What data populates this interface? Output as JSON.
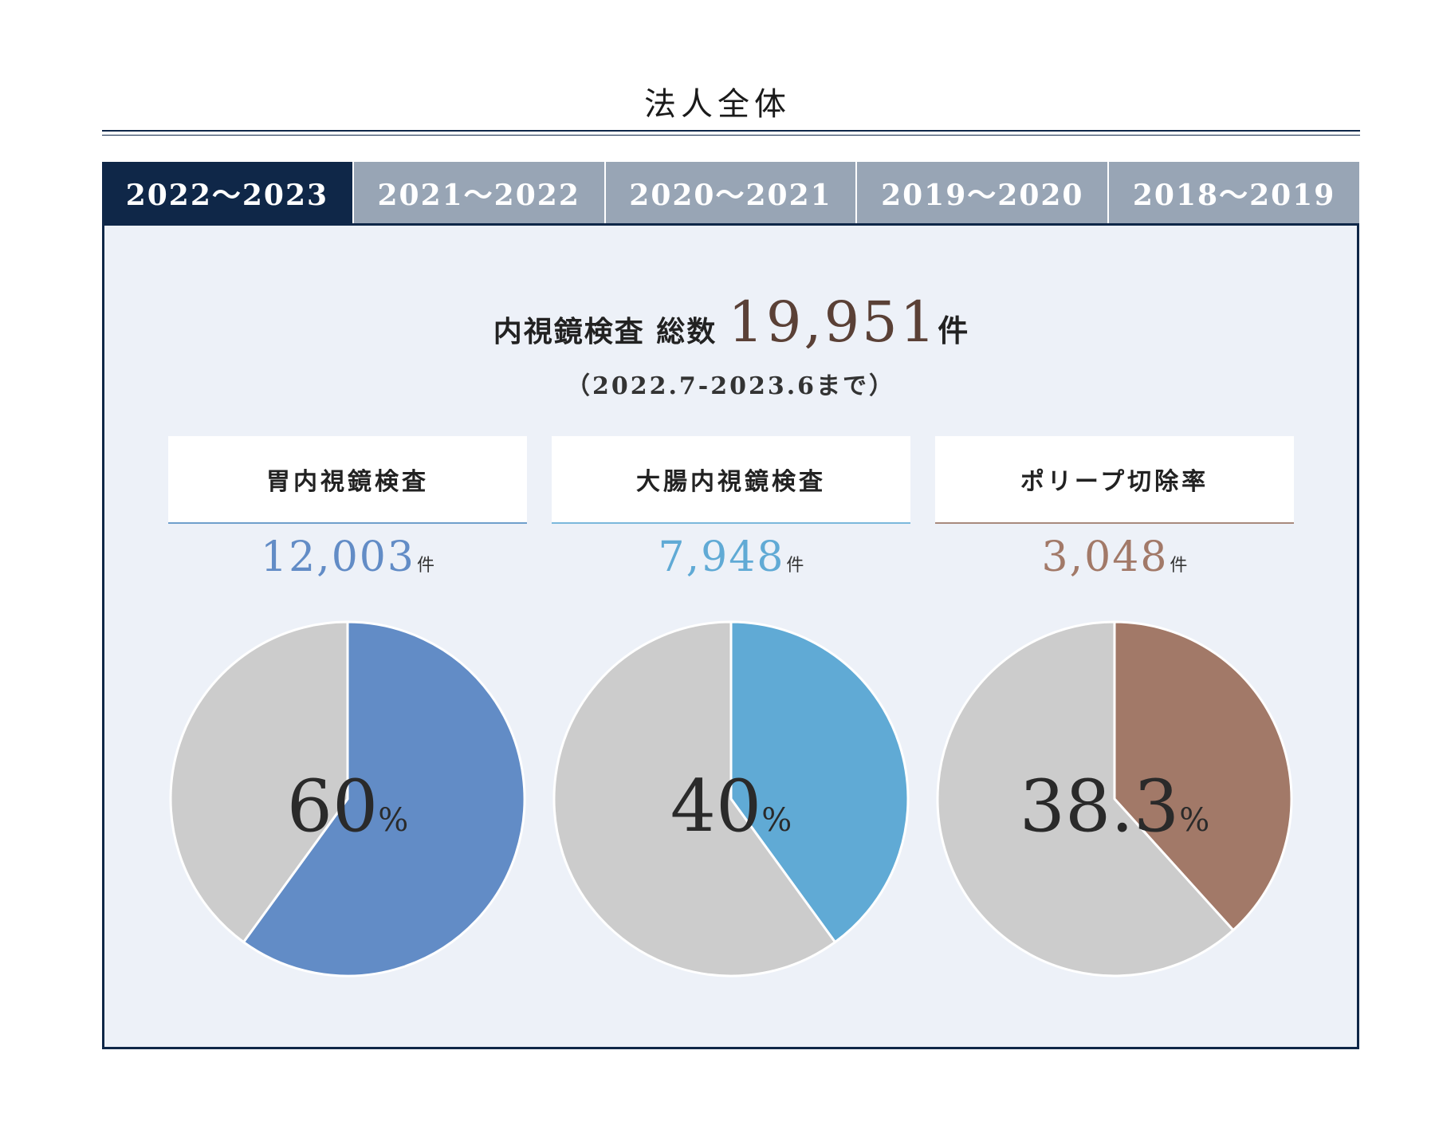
{
  "heading": "法人全体",
  "tabs": [
    {
      "label": "2022～2023"
    },
    {
      "label": "2021～2022"
    },
    {
      "label": "2020～2021"
    },
    {
      "label": "2019～2020"
    },
    {
      "label": "2018～2019"
    }
  ],
  "active_tab": 0,
  "summary": {
    "label": "内視鏡検査 総数",
    "total": "19,951",
    "unit": "件",
    "period": "（2022.7-2023.6まで）"
  },
  "colors": {
    "navy": "#0f2748",
    "inactive_tab": "#98a5b5",
    "panel_bg": "#edf1f8",
    "remainder": "#cccccc",
    "total_number": "#5a4036"
  },
  "cards": [
    {
      "title": "胃内視鏡検査",
      "count": "12,003",
      "unit": "件",
      "percent_label": "60",
      "percent_sign": "%",
      "color": "#628cc6",
      "rule_color": "#6f9fcc"
    },
    {
      "title": "大腸内視鏡検査",
      "count": "7,948",
      "unit": "件",
      "percent_label": "40",
      "percent_sign": "%",
      "color": "#60aad5",
      "rule_color": "#7bb8dc"
    },
    {
      "title": "ポリープ切除率",
      "count": "3,048",
      "unit": "件",
      "percent_label": "38.3",
      "percent_sign": "%",
      "color": "#a27968",
      "rule_color": "#a88a7d"
    }
  ],
  "chart_data": [
    {
      "type": "pie",
      "slices": [
        {
          "value": 60,
          "color": "#628cc6"
        },
        {
          "value": 40,
          "color": "#cccccc"
        }
      ],
      "start": "12 o'clock",
      "direction": "clockwise"
    },
    {
      "type": "pie",
      "slices": [
        {
          "value": 40,
          "color": "#60aad5"
        },
        {
          "value": 60,
          "color": "#cccccc"
        }
      ],
      "start": "12 o'clock",
      "direction": "clockwise"
    },
    {
      "type": "pie",
      "slices": [
        {
          "value": 38.3,
          "color": "#a27968"
        },
        {
          "value": 61.7,
          "color": "#cccccc"
        }
      ],
      "start": "12 o'clock",
      "direction": "clockwise"
    }
  ]
}
